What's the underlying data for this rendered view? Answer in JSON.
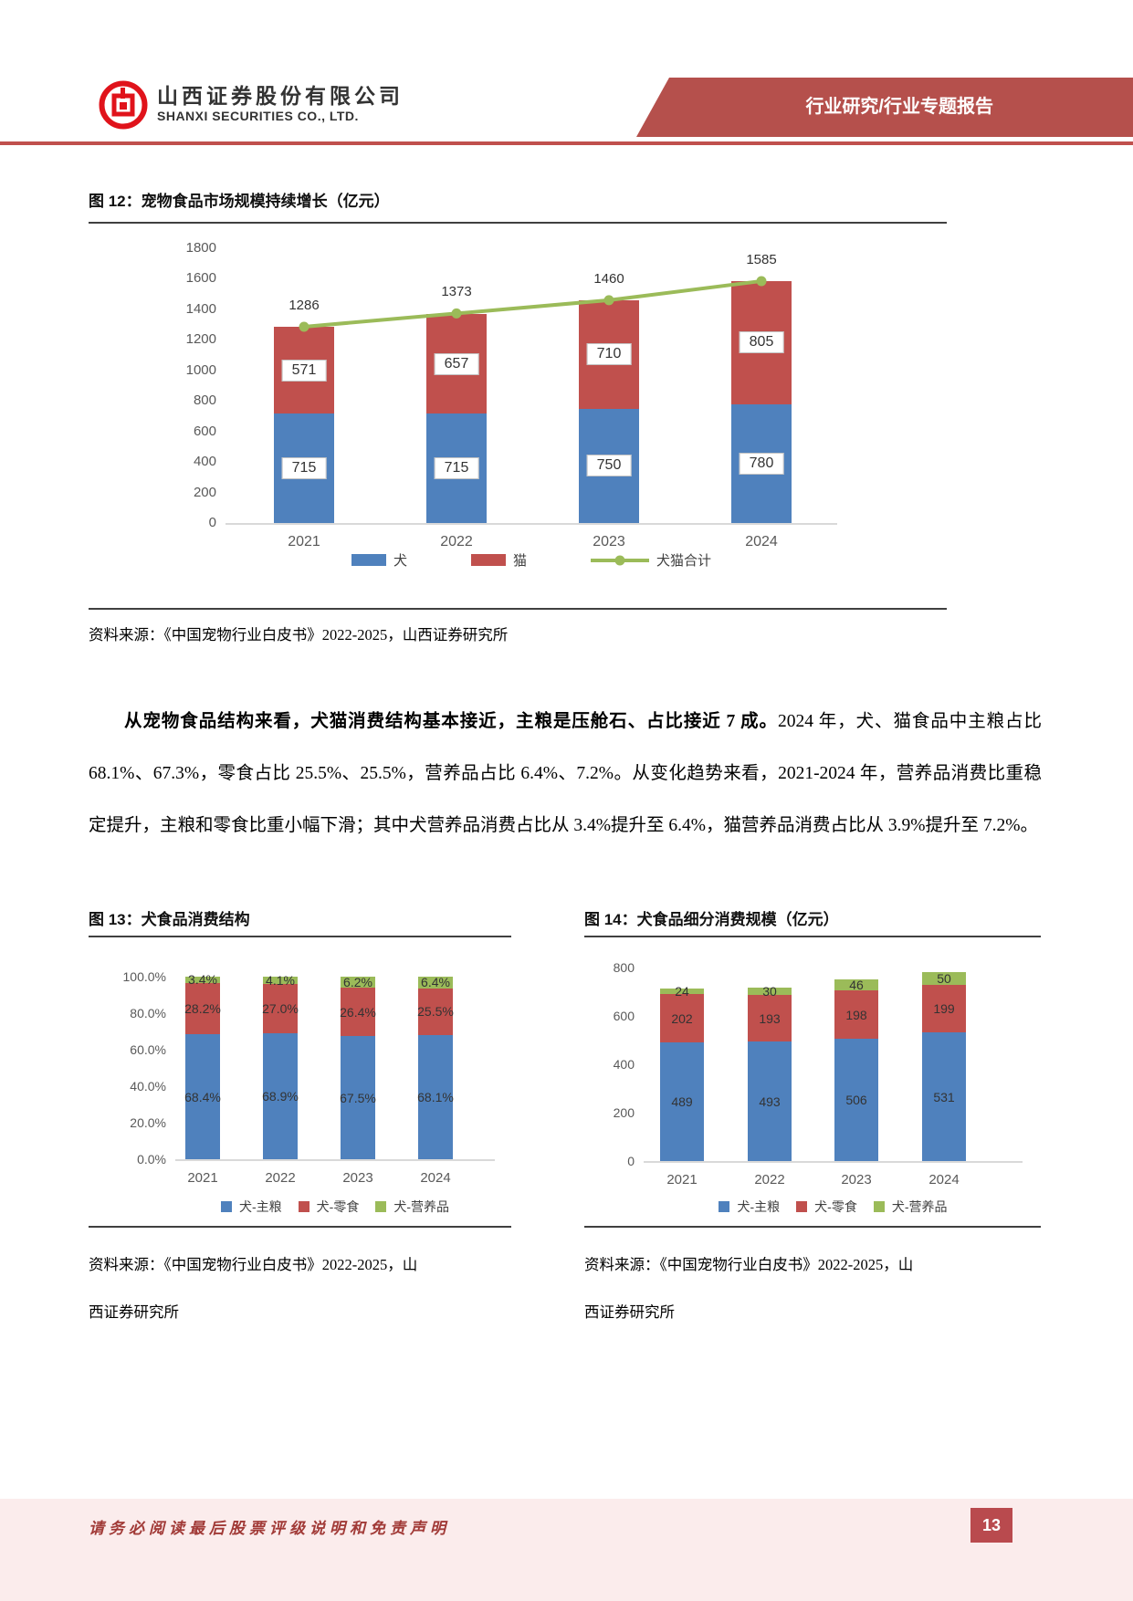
{
  "page": {
    "number": "13"
  },
  "header": {
    "company_cn": "山西证券股份有限公司",
    "company_en": "SHANXI SECURITIES CO., LTD.",
    "banner": "行业研究/行业专题报告"
  },
  "figures": {
    "fig12": {
      "title": "图 12：宠物食品市场规模持续增长（亿元）",
      "source": "资料来源：《中国宠物行业白皮书》2022-2025，山西证券研究所"
    },
    "fig13": {
      "title": "图 13：犬食品消费结构",
      "source_line1": "资料来源：《中国宠物行业白皮书》2022-2025，山",
      "source_line2": "西证券研究所"
    },
    "fig14": {
      "title": "图 14：犬食品细分消费规模（亿元）",
      "source_line1": "资料来源：《中国宠物行业白皮书》2022-2025，山",
      "source_line2": "西证券研究所"
    }
  },
  "paragraph": {
    "bold": "从宠物食品结构来看，犬猫消费结构基本接近，主粮是压舱石、占比接近 7 成。",
    "normal": "2024 年，犬、猫食品中主粮占比 68.1%、67.3%，零食占比 25.5%、25.5%，营养品占比 6.4%、7.2%。从变化趋势来看，2021-2024 年，营养品消费比重稳定提升，主粮和零食比重小幅下滑；其中犬营养品消费占比从 3.4%提升至 6.4%，猫营养品消费占比从 3.9%提升至 7.2%。"
  },
  "footer": {
    "disclaimer": "请务必阅读最后股票评级说明和免责声明"
  },
  "colors": {
    "dog_blue": "#4F81BD",
    "cat_red": "#C0504D",
    "nutrition_green": "#9BBB59",
    "banner_red": "#B5504C",
    "accent_red": "#C0504D"
  },
  "chart_data": [
    {
      "type": "bar",
      "stacked": true,
      "title": "宠物食品市场规模持续增长（亿元）",
      "categories": [
        "2021",
        "2022",
        "2023",
        "2024"
      ],
      "series": [
        {
          "name": "犬",
          "color": "#4F81BD",
          "values": [
            715,
            715,
            750,
            780
          ]
        },
        {
          "name": "猫",
          "color": "#C0504D",
          "values": [
            571,
            657,
            710,
            805
          ]
        }
      ],
      "line_series": {
        "name": "犬猫合计",
        "color": "#9BBB59",
        "values": [
          1286,
          1373,
          1460,
          1585
        ]
      },
      "ylim": [
        0,
        1800
      ],
      "ytick_step": 200,
      "grid": false,
      "legend_position": "bottom"
    },
    {
      "type": "bar",
      "stacked": true,
      "percent": true,
      "title": "犬食品消费结构",
      "categories": [
        "2021",
        "2022",
        "2023",
        "2024"
      ],
      "series": [
        {
          "name": "犬-主粮",
          "color": "#4F81BD",
          "values": [
            68.4,
            68.9,
            67.5,
            68.1
          ]
        },
        {
          "name": "犬-零食",
          "color": "#C0504D",
          "values": [
            28.2,
            27.0,
            26.4,
            25.5
          ]
        },
        {
          "name": "犬-营养品",
          "color": "#9BBB59",
          "values": [
            3.4,
            4.1,
            6.2,
            6.4
          ]
        }
      ],
      "ylim": [
        0,
        100
      ],
      "ytick_step": 20,
      "ytick_format": "percent1",
      "label_format": "percent1",
      "grid": false,
      "legend_position": "bottom"
    },
    {
      "type": "bar",
      "stacked": true,
      "title": "犬食品细分消费规模（亿元）",
      "categories": [
        "2021",
        "2022",
        "2023",
        "2024"
      ],
      "series": [
        {
          "name": "犬-主粮",
          "color": "#4F81BD",
          "values": [
            489,
            493,
            506,
            531
          ]
        },
        {
          "name": "犬-零食",
          "color": "#C0504D",
          "values": [
            202,
            193,
            198,
            199
          ]
        },
        {
          "name": "犬-营养品",
          "color": "#9BBB59",
          "values": [
            24,
            30,
            46,
            50
          ]
        }
      ],
      "ylim": [
        0,
        800
      ],
      "ytick_step": 200,
      "grid": false,
      "legend_position": "bottom"
    }
  ]
}
